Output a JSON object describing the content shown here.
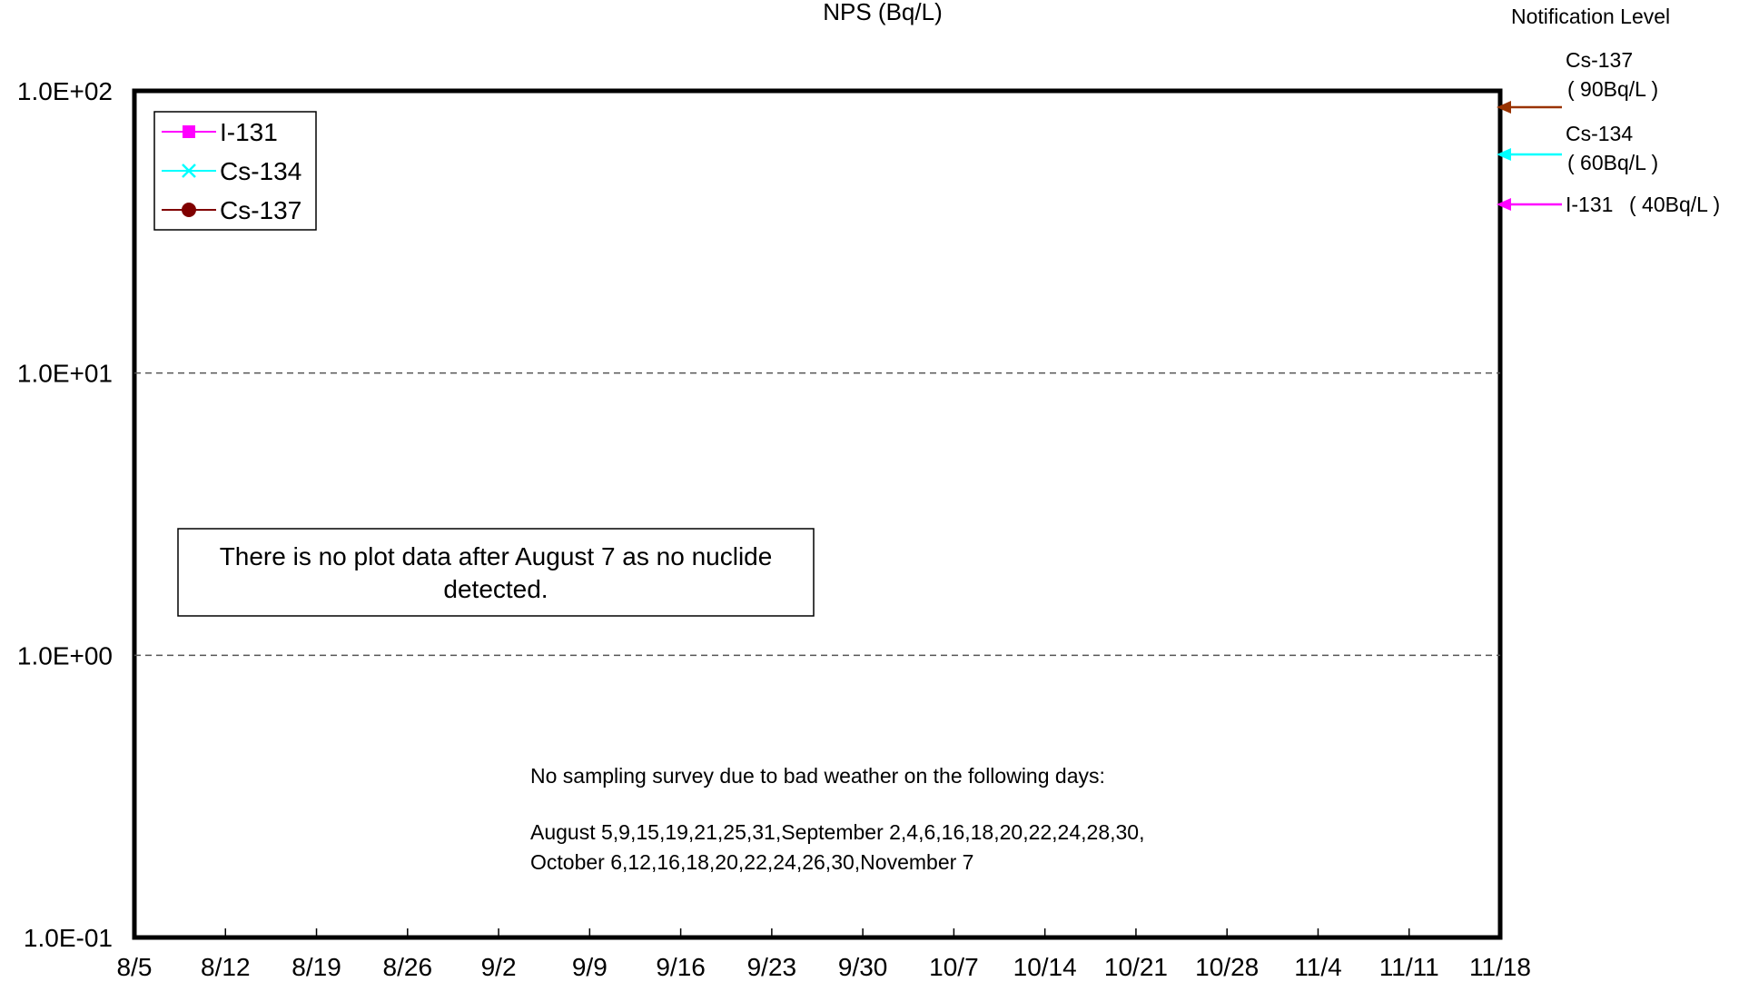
{
  "chart_data": {
    "type": "line",
    "title": "NPS (Bq/L)",
    "y_scale": "log",
    "ylim": [
      0.1,
      100
    ],
    "y_ticks": [
      "1.0E-01",
      "1.0E+00",
      "1.0E+01",
      "1.0E+02"
    ],
    "y_tick_values": [
      0.1,
      1,
      10,
      100
    ],
    "x_ticks": [
      "8/5",
      "8/12",
      "8/19",
      "8/26",
      "9/2",
      "9/9",
      "9/16",
      "9/23",
      "9/30",
      "10/7",
      "10/14",
      "10/21",
      "10/28",
      "11/4",
      "11/11",
      "11/18"
    ],
    "grid": "horizontal dashed at 1.0E+00 and 1.0E+01",
    "legend_position": "top-left",
    "series": [
      {
        "name": "I-131",
        "color": "#ff00ff",
        "marker": "square",
        "values": []
      },
      {
        "name": "Cs-134",
        "color": "#00ffff",
        "marker": "x",
        "values": []
      },
      {
        "name": "Cs-137",
        "color": "#800000",
        "marker": "circle",
        "values": []
      }
    ],
    "notification_levels": {
      "heading": "Notification Level",
      "items": [
        {
          "nuclide": "Cs-137",
          "level_text": "( 90Bq/L )",
          "value": 90,
          "color": "#993300"
        },
        {
          "nuclide": "Cs-134",
          "level_text": "( 60Bq/L )",
          "value": 60,
          "color": "#00ffff"
        },
        {
          "nuclide": "I-131",
          "level_text": "( 40Bq/L )",
          "value": 40,
          "color": "#ff00ff"
        }
      ]
    },
    "annotations": {
      "no_data": "There is no plot data after August 7 as no nuclide detected.",
      "no_sampling_line1": "No sampling survey due to bad weather on the following days:",
      "no_sampling_line2": "August 5,9,15,19,21,25,31,September 2,4,6,16,18,20,22,24,28,30,",
      "no_sampling_line3": "October 6,12,16,18,20,22,24,26,30,November 7"
    }
  }
}
